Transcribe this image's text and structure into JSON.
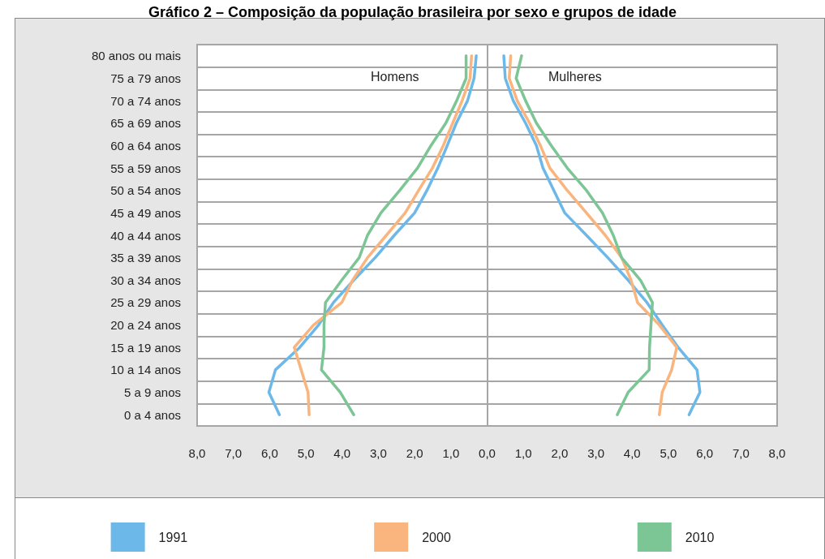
{
  "chart_data": {
    "type": "line",
    "title": "Gráfico 2 – Composição da população brasileira por sexo e grupos de idade",
    "orientation": "horizontal",
    "categories": [
      "80 anos ou mais",
      "75 a 79 anos",
      "70 a 74 anos",
      "65 a 69 anos",
      "60 a 64 anos",
      "55 a 59 anos",
      "50 a 54 anos",
      "45 a 49 anos",
      "40 a 44 anos",
      "35 a 39 anos",
      "30 a 34 anos",
      "25 a 29 anos",
      "20 a 24 anos",
      "15 a 19 anos",
      "10 a 14 anos",
      "5 a 9 anos",
      "0 a 4 anos"
    ],
    "series": [
      {
        "name": "1991",
        "color": "#6cb8e8",
        "values": [
          -0.3,
          -0.36,
          -0.54,
          -0.85,
          -1.1,
          -1.36,
          -1.66,
          -2.0,
          -2.56,
          -3.09,
          -3.68,
          -4.24,
          -4.65,
          -5.17,
          -5.84,
          -6.02,
          -5.73
        ]
      },
      {
        "name": "2000",
        "color": "#f9b57d",
        "values": [
          -0.43,
          -0.47,
          -0.69,
          -0.95,
          -1.21,
          -1.51,
          -1.89,
          -2.26,
          -2.78,
          -3.3,
          -3.71,
          -4.01,
          -4.79,
          -5.32,
          -5.13,
          -4.94,
          -4.91
        ]
      },
      {
        "name": "2010",
        "color": "#7cc594",
        "values": [
          -0.58,
          -0.58,
          -0.84,
          -1.14,
          -1.55,
          -1.92,
          -2.41,
          -2.93,
          -3.3,
          -3.53,
          -4.01,
          -4.46,
          -4.5,
          -4.5,
          -4.57,
          -4.05,
          -3.68
        ]
      },
      {
        "color": "#6cb8e8",
        "values": [
          0.46,
          0.5,
          0.72,
          1.06,
          1.36,
          1.54,
          1.84,
          2.14,
          2.74,
          3.33,
          3.89,
          4.41,
          4.83,
          5.27,
          5.79,
          5.87,
          5.57
        ]
      },
      {
        "color": "#f9b57d",
        "values": [
          0.65,
          0.61,
          0.83,
          1.17,
          1.47,
          1.73,
          2.21,
          2.74,
          3.26,
          3.71,
          3.97,
          4.15,
          4.75,
          5.23,
          5.09,
          4.83,
          4.75
        ]
      },
      {
        "color": "#7cc594",
        "values": [
          0.95,
          0.8,
          1.06,
          1.36,
          1.77,
          2.21,
          2.74,
          3.18,
          3.48,
          3.71,
          4.23,
          4.56,
          4.52,
          4.48,
          4.47,
          3.89,
          3.59
        ]
      }
    ],
    "xlim": [
      -8,
      8
    ],
    "xticks": [
      {
        "value": -8,
        "label": "8,0"
      },
      {
        "value": -7,
        "label": "7,0"
      },
      {
        "value": -6,
        "label": "6,0"
      },
      {
        "value": -5,
        "label": "5,0"
      },
      {
        "value": -4,
        "label": "4,0"
      },
      {
        "value": -3,
        "label": "3,0"
      },
      {
        "value": -2,
        "label": "2,0"
      },
      {
        "value": -1,
        "label": "1,0"
      },
      {
        "value": 0,
        "label": "0,0"
      },
      {
        "value": 1,
        "label": "1,0"
      },
      {
        "value": 2,
        "label": "2,0"
      },
      {
        "value": 3,
        "label": "3,0"
      },
      {
        "value": 4,
        "label": "4,0"
      },
      {
        "value": 5,
        "label": "5,0"
      },
      {
        "value": 6,
        "label": "6,0"
      },
      {
        "value": 7,
        "label": "7,0"
      },
      {
        "value": 8,
        "label": "8,0"
      }
    ],
    "annotations": [
      "Homens",
      "Mulheres"
    ],
    "ref_lines": [
      {
        "axis": "x",
        "value": 0,
        "color": "#a6a6a6"
      }
    ],
    "grid": "y",
    "legend": "bottom",
    "marker": "none",
    "line_style": "solid"
  }
}
